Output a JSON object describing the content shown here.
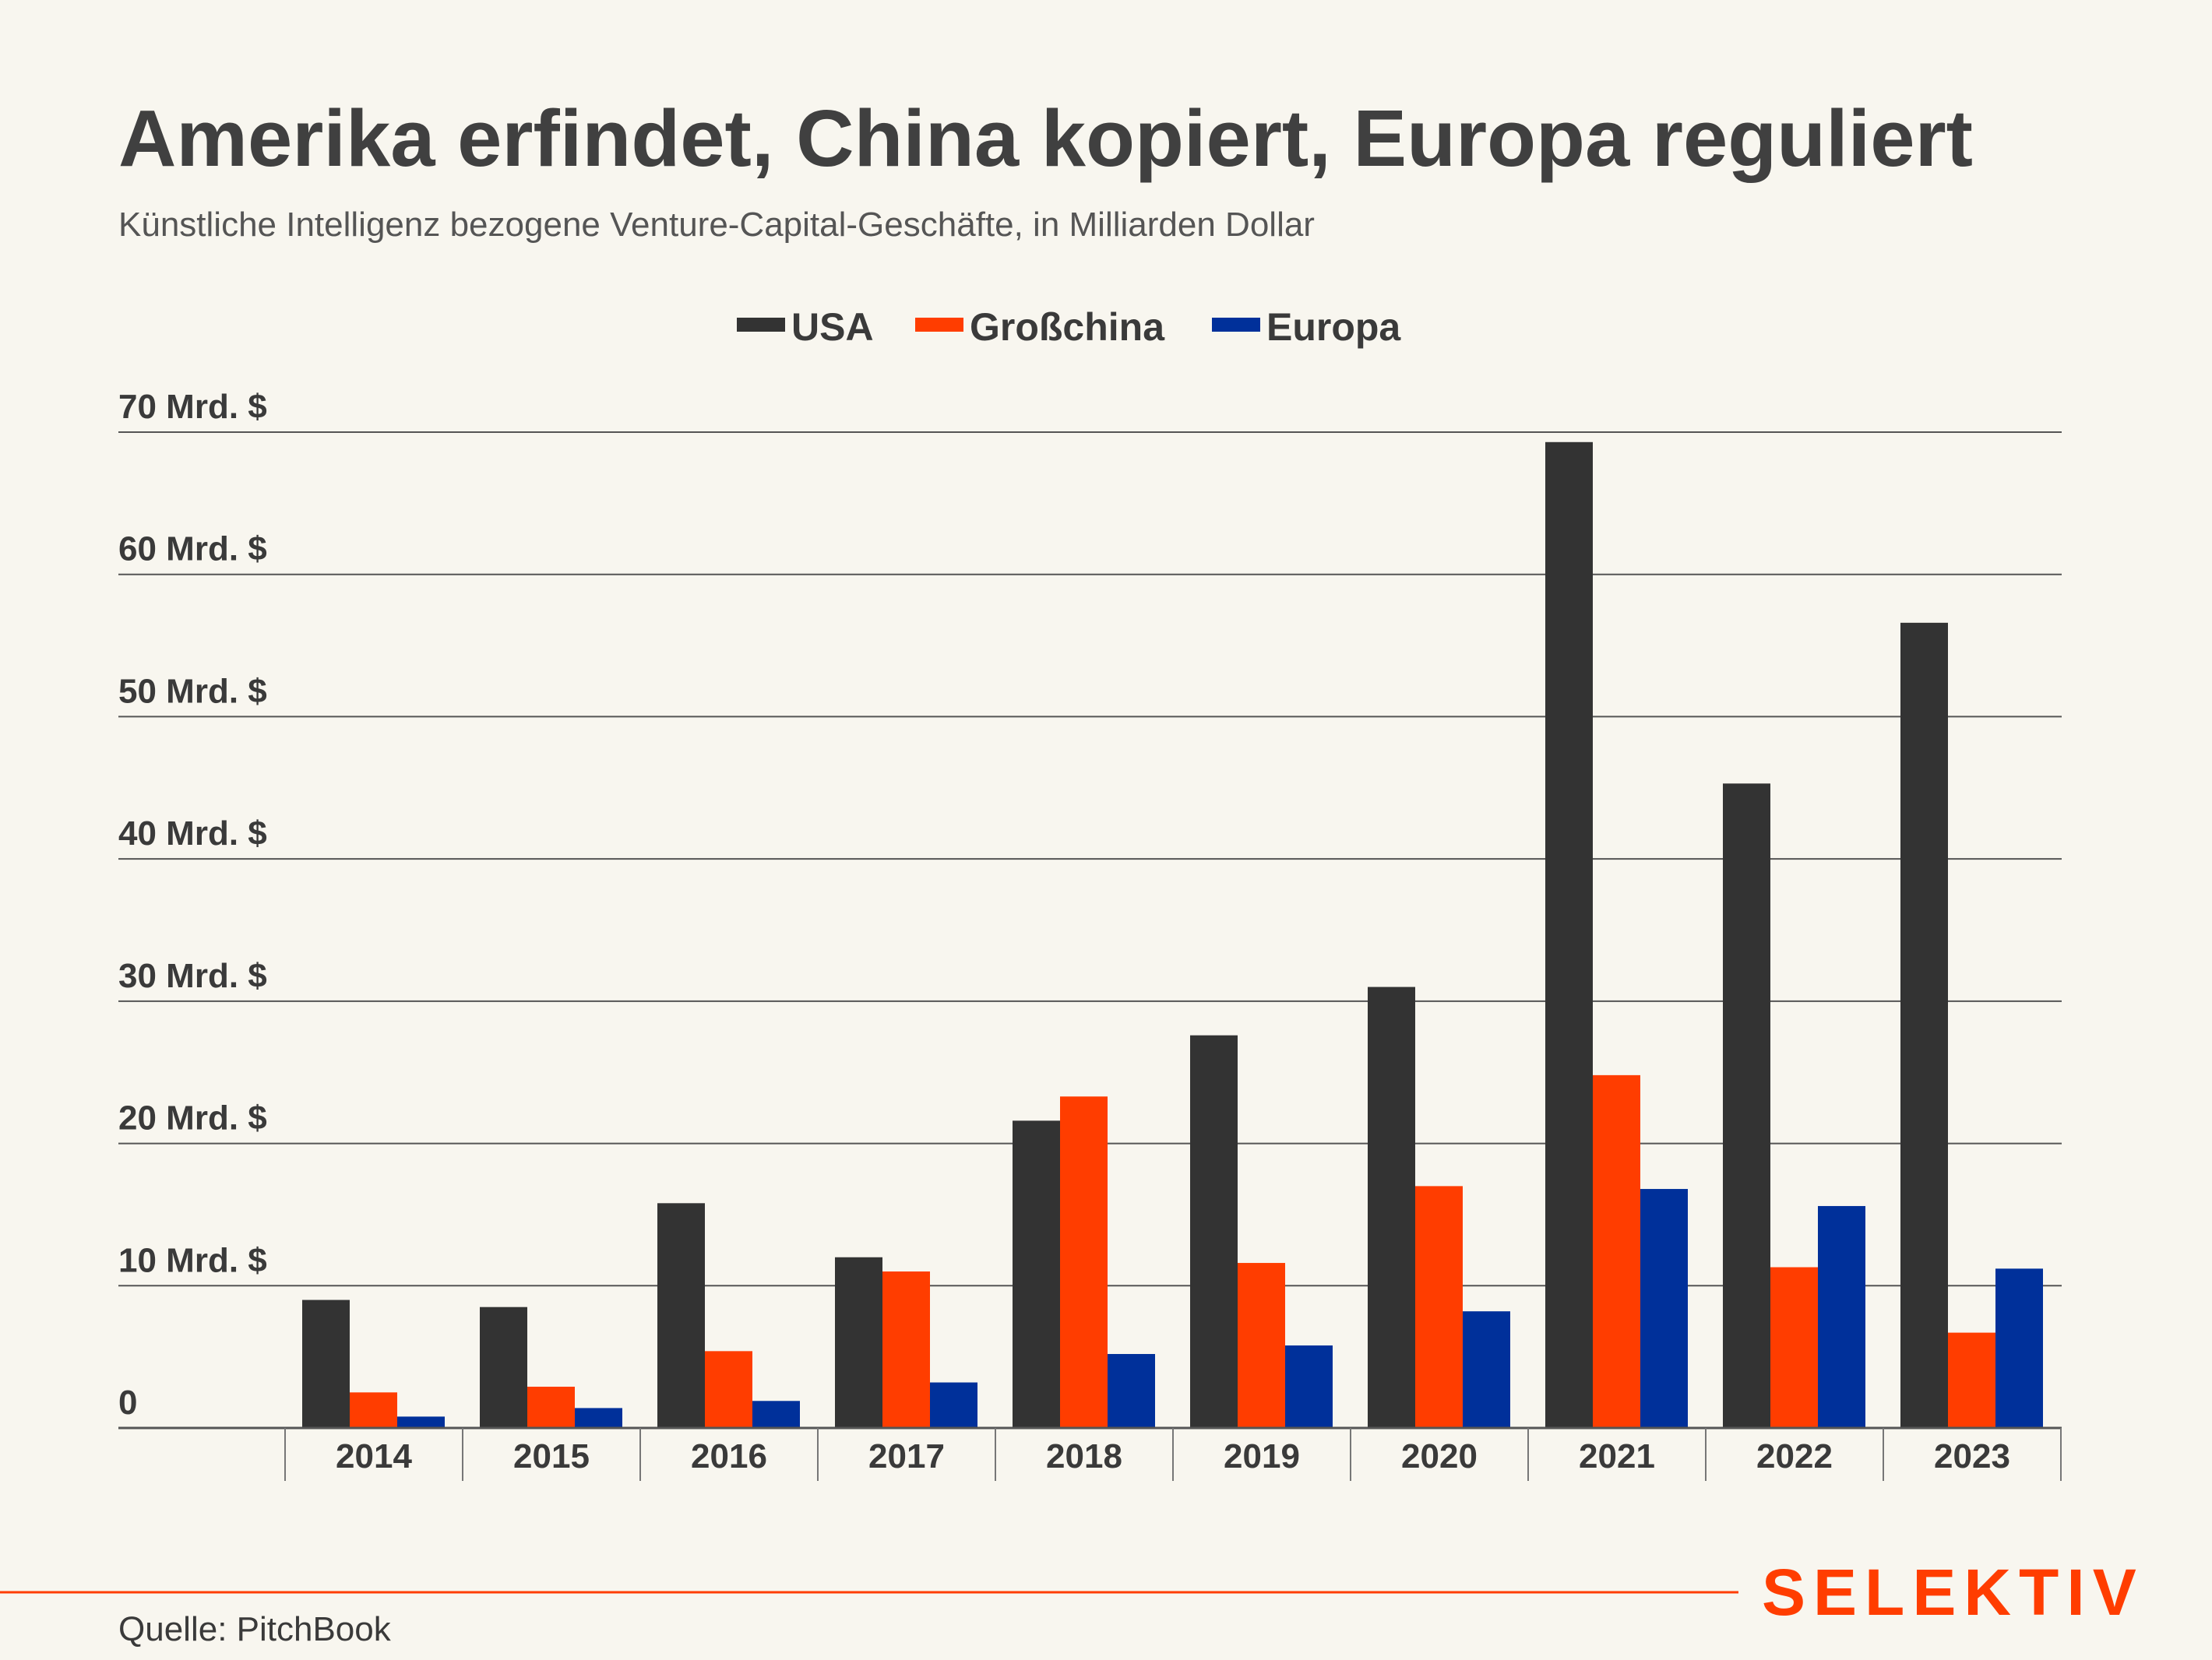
{
  "chart_data": {
    "type": "bar",
    "title": "Amerika erfindet, China kopiert, Europa reguliert",
    "subtitle": "Künstliche Intelligenz bezogene Venture-Capital-Geschäfte, in Milliarden Dollar",
    "categories": [
      "2014",
      "2015",
      "2016",
      "2017",
      "2018",
      "2019",
      "2020",
      "2021",
      "2022",
      "2023"
    ],
    "series": [
      {
        "name": "USA",
        "color": "#333333",
        "values": [
          9.0,
          8.5,
          15.8,
          12.0,
          21.6,
          27.6,
          31.0,
          69.3,
          45.3,
          56.6
        ]
      },
      {
        "name": "Großchina",
        "color": "#ff3d00",
        "values": [
          2.5,
          2.9,
          5.4,
          11.0,
          23.3,
          11.6,
          17.0,
          24.8,
          11.3,
          6.7
        ]
      },
      {
        "name": "Europa",
        "color": "#00309a",
        "values": [
          0.8,
          1.4,
          1.9,
          3.2,
          5.2,
          5.8,
          8.2,
          16.8,
          15.6,
          11.2
        ]
      }
    ],
    "ylim": [
      0,
      70
    ],
    "yticks": [
      0,
      10,
      20,
      30,
      40,
      50,
      60,
      70
    ],
    "ytick_labels": [
      "0",
      "10 Mrd. $",
      "20 Mrd. $",
      "30 Mrd. $",
      "40 Mrd. $",
      "50 Mrd. $",
      "60 Mrd. $",
      "70 Mrd. $"
    ],
    "xlabel": "",
    "ylabel": "",
    "grid": true,
    "legend_position": "top-center"
  },
  "source": "Quelle: PitchBook",
  "brand": {
    "name": "SELEKTIV",
    "color": "#ff3d00"
  }
}
